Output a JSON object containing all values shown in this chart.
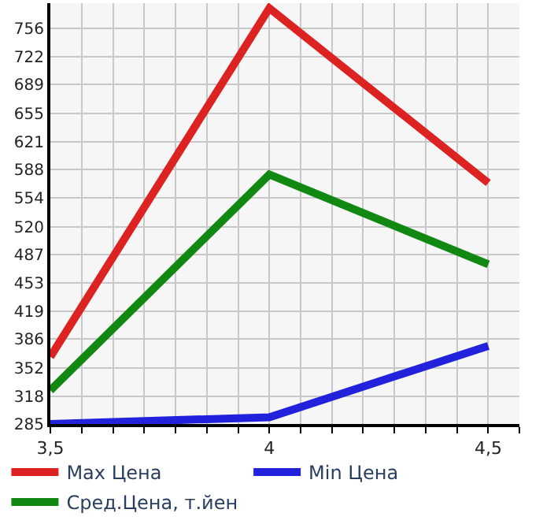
{
  "chart_data": {
    "type": "line",
    "x": [
      3.5,
      4,
      4.5
    ],
    "series": [
      {
        "name": "Max Цена",
        "color": "#dd2222",
        "values": [
          365,
          780,
          572
        ]
      },
      {
        "name": "Min Цена",
        "color": "#2222dd",
        "values": [
          285,
          293,
          378
        ]
      },
      {
        "name": "Сред.Цена, т.йен",
        "color": "#118811",
        "values": [
          325,
          582,
          475
        ]
      }
    ],
    "xlim": [
      3.5,
      4.571
    ],
    "xticks": [
      {
        "value": 3.5,
        "label": "3,5"
      },
      {
        "value": 3.571,
        "label": null
      },
      {
        "value": 3.643,
        "label": null
      },
      {
        "value": 3.714,
        "label": null
      },
      {
        "value": 3.786,
        "label": null
      },
      {
        "value": 3.857,
        "label": null
      },
      {
        "value": 3.929,
        "label": null
      },
      {
        "value": 4,
        "label": "4"
      },
      {
        "value": 4.071,
        "label": null
      },
      {
        "value": 4.143,
        "label": null
      },
      {
        "value": 4.214,
        "label": null
      },
      {
        "value": 4.286,
        "label": null
      },
      {
        "value": 4.357,
        "label": null
      },
      {
        "value": 4.429,
        "label": null
      },
      {
        "value": 4.5,
        "label": "4,5"
      },
      {
        "value": 4.571,
        "label": null
      }
    ],
    "ylim": [
      285,
      786
    ],
    "yticks": [
      285,
      318,
      352,
      386,
      419,
      453,
      487,
      520,
      554,
      588,
      621,
      655,
      689,
      722,
      756
    ],
    "grid": true,
    "legend": "bottom",
    "marker": "none",
    "line_style": "solid"
  }
}
